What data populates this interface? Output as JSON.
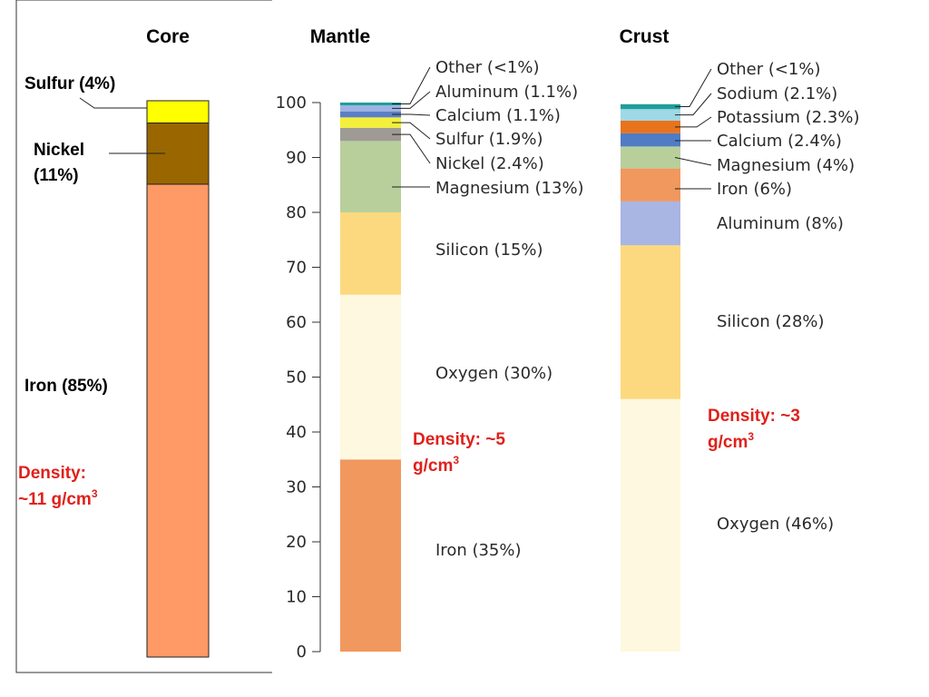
{
  "chart_data": [
    {
      "type": "bar",
      "stacked": true,
      "title": "Core",
      "ylim": [
        0,
        100
      ],
      "segments": [
        {
          "name": "Iron",
          "label": "Iron (85%)",
          "value": 85,
          "color": "#ff9966"
        },
        {
          "name": "Nickel",
          "label": "Nickel (11%)",
          "label_lines": [
            "Nickel",
            "(11%)"
          ],
          "value": 11,
          "color": "#996600"
        },
        {
          "name": "Sulfur",
          "label": "Sulfur (4%)",
          "value": 4,
          "color": "#ffff00"
        }
      ],
      "density": {
        "lines": [
          "Density:",
          "~11 g/cm"
        ],
        "sup": "3"
      }
    },
    {
      "type": "bar",
      "stacked": true,
      "title": "Mantle",
      "ylim": [
        0,
        100
      ],
      "yticks": [
        0,
        10,
        20,
        30,
        40,
        50,
        60,
        70,
        80,
        90,
        100
      ],
      "segments": [
        {
          "name": "Iron",
          "label": "Iron (35%)",
          "value": 35,
          "color": "#f0985e"
        },
        {
          "name": "Oxygen",
          "label": "Oxygen (30%)",
          "value": 30,
          "color": "#fdf8df"
        },
        {
          "name": "Silicon",
          "label": "Silicon (15%)",
          "value": 15,
          "color": "#fcd97e"
        },
        {
          "name": "Magnesium",
          "label": "Magnesium (13%)",
          "value": 13,
          "color": "#b8cf9c"
        },
        {
          "name": "Nickel",
          "label": "Nickel (2.4%)",
          "value": 2.4,
          "color": "#9e9a94"
        },
        {
          "name": "Sulfur",
          "label": "Sulfur (1.9%)",
          "value": 1.9,
          "color": "#f3ef3a"
        },
        {
          "name": "Calcium",
          "label": "Calcium (1.1%)",
          "value": 1.1,
          "color": "#5b7fc6"
        },
        {
          "name": "Aluminum",
          "label": "Aluminum (1.1%)",
          "value": 1.1,
          "color": "#9fb3e2"
        },
        {
          "name": "Other",
          "label": "Other (<1%)",
          "value": 0.5,
          "color": "#1f9e9a"
        }
      ],
      "density": {
        "lines": [
          "Density: ~5",
          "g/cm"
        ],
        "sup": "3"
      }
    },
    {
      "type": "bar",
      "stacked": true,
      "title": "Crust",
      "ylim": [
        0,
        100
      ],
      "segments": [
        {
          "name": "Oxygen",
          "label": "Oxygen (46%)",
          "value": 46,
          "color": "#fdf8df"
        },
        {
          "name": "Silicon",
          "label": "Silicon (28%)",
          "value": 28,
          "color": "#fcd97e"
        },
        {
          "name": "Aluminum",
          "label": "Aluminum (8%)",
          "value": 8,
          "color": "#a9b5e2"
        },
        {
          "name": "Iron",
          "label": "Iron (6%)",
          "value": 6,
          "color": "#f0985e"
        },
        {
          "name": "Magnesium",
          "label": "Magnesium (4%)",
          "value": 4,
          "color": "#b8cf9c"
        },
        {
          "name": "Calcium",
          "label": "Calcium (2.4%)",
          "value": 2.4,
          "color": "#4f7cc4"
        },
        {
          "name": "Potassium",
          "label": "Potassium (2.3%)",
          "value": 2.3,
          "color": "#e8731d"
        },
        {
          "name": "Sodium",
          "label": "Sodium (2.1%)",
          "value": 2.1,
          "color": "#9fd8e6"
        },
        {
          "name": "Other",
          "label": "Other (<1%)",
          "value": 0.9,
          "color": "#1f9e9a"
        }
      ],
      "density": {
        "lines": [
          "Density: ~3",
          "g/cm"
        ],
        "sup": "3"
      }
    }
  ]
}
